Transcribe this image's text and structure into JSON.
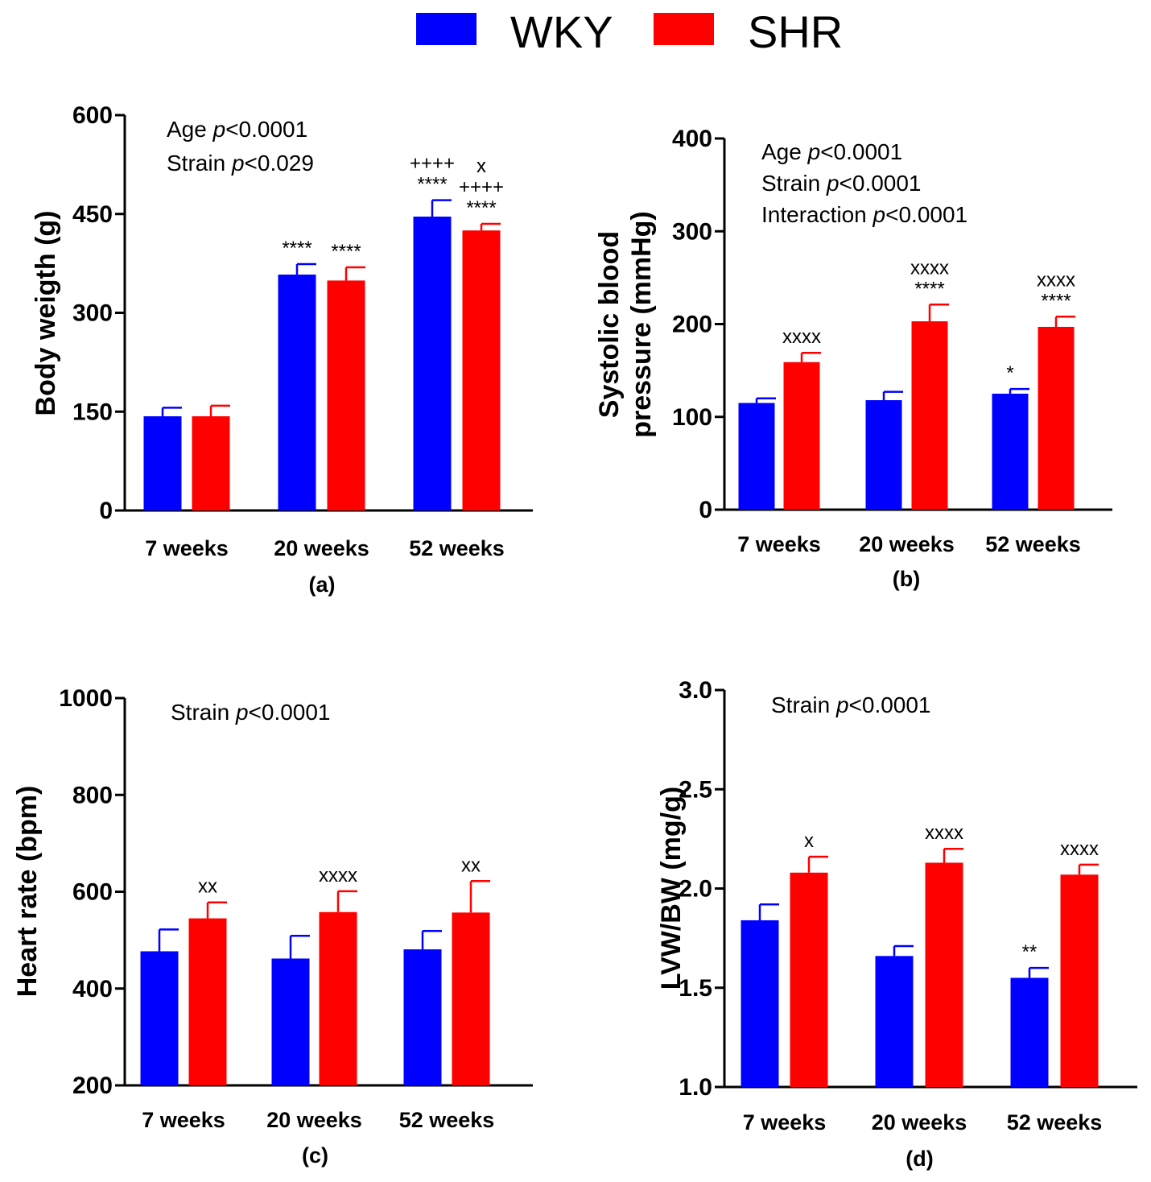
{
  "legend": {
    "items": [
      {
        "name": "WKY",
        "color": "#0000ff"
      },
      {
        "name": "SHR",
        "color": "#ff0000"
      }
    ],
    "placement": "top-center"
  },
  "chart_data": [
    {
      "type": "bar",
      "panel_label": "(a)",
      "ylabel": "Body weigth (g)",
      "categories": [
        "7 weeks",
        "20 weeks",
        "52 weeks"
      ],
      "ylim": [
        0,
        600
      ],
      "yticks": [
        "0",
        "150",
        "300",
        "450",
        "600"
      ],
      "stats": [
        {
          "pre": "Age ",
          "p": "p",
          "post": "<0.0001"
        },
        {
          "pre": "Strain ",
          "p": "p",
          "post": "<0.029"
        }
      ],
      "series": [
        {
          "name": "WKY",
          "values": [
            143,
            358,
            446
          ],
          "errors": [
            13,
            16,
            25
          ],
          "annotations": [
            [],
            [
              "****"
            ],
            [
              "++++",
              "****"
            ]
          ]
        },
        {
          "name": "SHR",
          "values": [
            143,
            349,
            425
          ],
          "errors": [
            16,
            20,
            10
          ],
          "annotations": [
            [],
            [
              "****"
            ],
            [
              "x",
              "++++",
              "****"
            ]
          ]
        }
      ]
    },
    {
      "type": "bar",
      "panel_label": "(b)",
      "ylabel": [
        "Systolic blood",
        "pressure (mmHg)"
      ],
      "categories": [
        "7 weeks",
        "20 weeks",
        "52 weeks"
      ],
      "ylim": [
        0,
        400
      ],
      "yticks": [
        "0",
        "100",
        "200",
        "300",
        "400"
      ],
      "stats": [
        {
          "pre": "Age ",
          "p": "p",
          "post": "<0.0001"
        },
        {
          "pre": "Strain ",
          "p": "p",
          "post": "<0.0001"
        },
        {
          "pre": "Interaction ",
          "p": "p",
          "post": "<0.0001"
        }
      ],
      "series": [
        {
          "name": "WKY",
          "values": [
            115,
            118,
            125
          ],
          "errors": [
            5,
            9,
            5
          ],
          "annotations": [
            [],
            [],
            [
              "*"
            ]
          ]
        },
        {
          "name": "SHR",
          "values": [
            159,
            203,
            197
          ],
          "errors": [
            10,
            18,
            11
          ],
          "annotations": [
            [
              "xxxx"
            ],
            [
              "xxxx",
              "****"
            ],
            [
              "xxxx",
              "****"
            ]
          ]
        }
      ]
    },
    {
      "type": "bar",
      "panel_label": "(c)",
      "ylabel": "Heart rate (bpm)",
      "categories": [
        "7 weeks",
        "20 weeks",
        "52 weeks"
      ],
      "ylim": [
        200,
        1000
      ],
      "yticks": [
        "200",
        "400",
        "600",
        "800",
        "1000"
      ],
      "stats": [
        {
          "pre": "Strain ",
          "p": "p",
          "post": "<0.0001"
        }
      ],
      "series": [
        {
          "name": "WKY",
          "values": [
            477,
            462,
            481
          ],
          "errors": [
            45,
            47,
            38
          ],
          "annotations": [
            [],
            [],
            []
          ]
        },
        {
          "name": "SHR",
          "values": [
            545,
            558,
            557
          ],
          "errors": [
            33,
            43,
            65
          ],
          "annotations": [
            [
              "xx"
            ],
            [
              "xxxx"
            ],
            [
              "xx"
            ]
          ]
        }
      ]
    },
    {
      "type": "bar",
      "panel_label": "(d)",
      "ylabel": "LVW/BW (mg/g)",
      "categories": [
        "7 weeks",
        "20 weeks",
        "52 weeks"
      ],
      "ylim": [
        1.0,
        3.0
      ],
      "yticks": [
        "1.0",
        "1.5",
        "2.0",
        "2.5",
        "3.0"
      ],
      "stats": [
        {
          "pre": "Strain ",
          "p": "p",
          "post": "<0.0001"
        }
      ],
      "series": [
        {
          "name": "WKY",
          "values": [
            1.84,
            1.66,
            1.55
          ],
          "errors": [
            0.08,
            0.05,
            0.05
          ],
          "annotations": [
            [],
            [],
            [
              "**"
            ]
          ]
        },
        {
          "name": "SHR",
          "values": [
            2.08,
            2.13,
            2.07
          ],
          "errors": [
            0.08,
            0.07,
            0.05
          ],
          "annotations": [
            [
              "x"
            ],
            [
              "xxxx"
            ],
            [
              "xxxx"
            ]
          ]
        }
      ]
    }
  ]
}
